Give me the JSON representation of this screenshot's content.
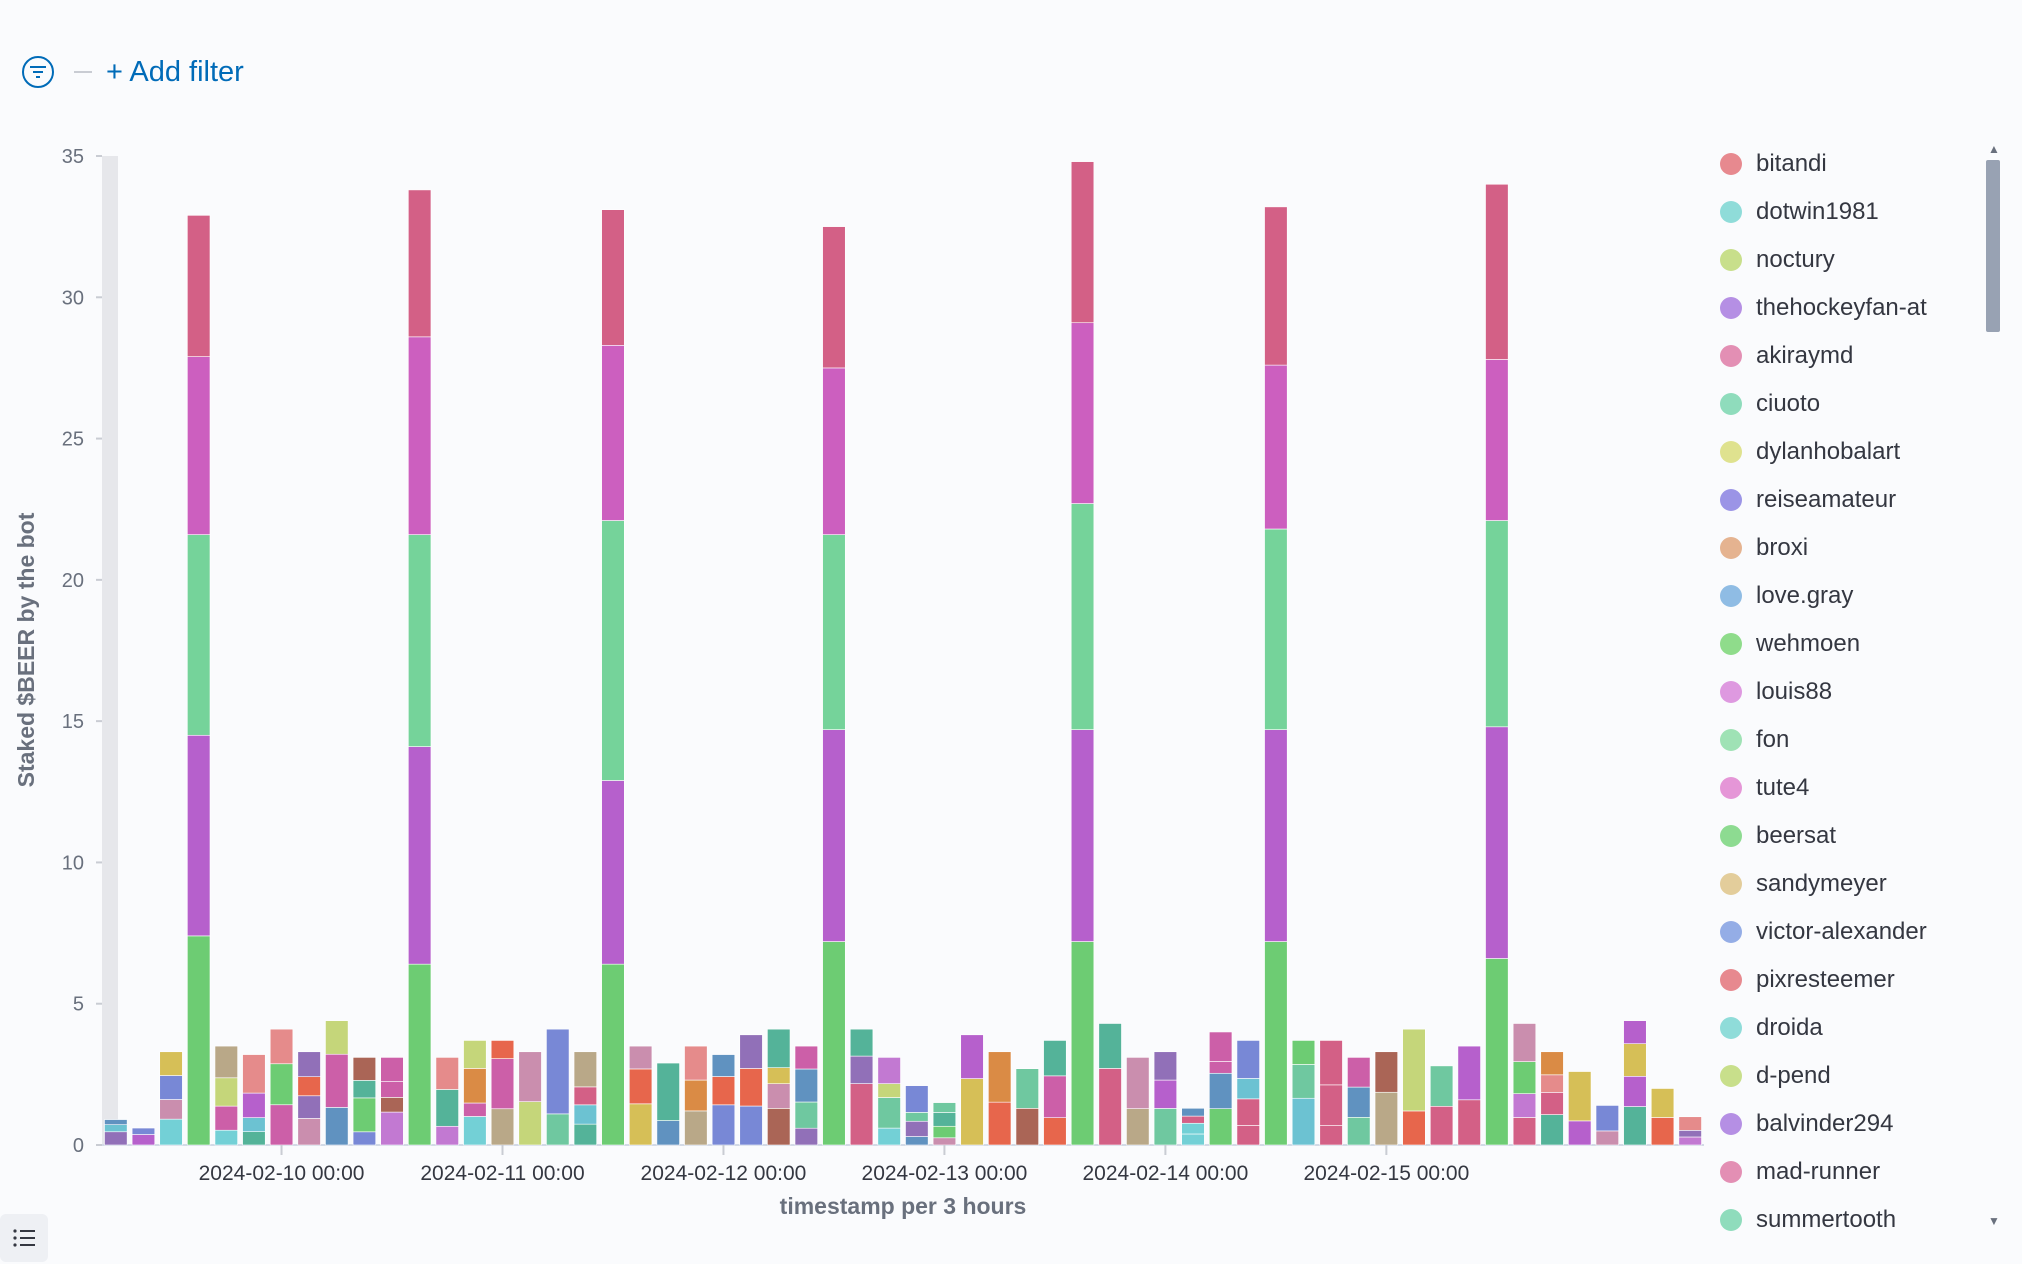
{
  "filter_bar": {
    "add_filter_label": "+ Add filter"
  },
  "chart_data": {
    "type": "bar",
    "stacked": true,
    "xlabel": "timestamp per 3 hours",
    "ylabel": "Staked $BEER by the bot",
    "ylim": [
      0,
      35
    ],
    "yticks": [
      0,
      5,
      10,
      15,
      20,
      25,
      30,
      35
    ],
    "xtick_labels": [
      "2024-02-10 00:00",
      "2024-02-11 00:00",
      "2024-02-12 00:00",
      "2024-02-13 00:00",
      "2024-02-14 00:00",
      "2024-02-15 00:00"
    ],
    "xtick_bar_positions": [
      6,
      14,
      22,
      30,
      38,
      46
    ],
    "legend_position": "right",
    "series_names": [
      "bitandi",
      "dotwin1981",
      "noctury",
      "thehockeyfan-at",
      "akiraymd",
      "ciuoto",
      "dylanhobalart",
      "reiseamateur",
      "broxi",
      "love.gray",
      "wehmoen",
      "louis88",
      "fon",
      "tute4",
      "beersat",
      "sandymeyer",
      "victor-alexander",
      "pixresteemer",
      "droida",
      "d-pend",
      "balvinder294",
      "mad-runner",
      "summertooth"
    ],
    "colors": [
      "#e7898f",
      "#8fdcd9",
      "#c8df8b",
      "#b58fe4",
      "#e38fb4",
      "#8fdcbc",
      "#dfe28f",
      "#9b94e6",
      "#e5b390",
      "#8fbce4",
      "#8fdc8b",
      "#de99e0",
      "#9fe2b5",
      "#e596d7",
      "#8ddb91",
      "#e3cd9b",
      "#94ade6",
      "#e7898f",
      "#8fdcd9",
      "#c8df8b",
      "#b58fe4",
      "#e38fb4",
      "#8fdcbc"
    ],
    "bar_colors": [
      "#d36086",
      "#54b399",
      "#d6bf57",
      "#6092c0",
      "#9170b8",
      "#ca8eae",
      "#6dcc73",
      "#b9a888",
      "#da8b45",
      "#aa6556",
      "#e7664c",
      "#73d0d6",
      "#b660cc",
      "#cc5fa8",
      "#c5d67a",
      "#6cc2d2",
      "#7888d6",
      "#e58b8b",
      "#6fc8a0",
      "#c279d2"
    ],
    "bar_totals": [
      0.9,
      0.6,
      3.3,
      32.9,
      3.5,
      3.2,
      4.1,
      3.3,
      4.4,
      3.1,
      3.1,
      33.8,
      3.1,
      3.7,
      3.7,
      3.3,
      4.1,
      3.3,
      33.1,
      3.5,
      2.9,
      3.5,
      3.2,
      3.9,
      4.1,
      3.5,
      32.5,
      4.1,
      3.1,
      2.1,
      1.5,
      3.9,
      3.3,
      2.7,
      3.7,
      34.8,
      4.3,
      3.1,
      3.3,
      1.3,
      4.0,
      3.7,
      33.2,
      3.7,
      3.7,
      3.1,
      3.3,
      4.1,
      2.8,
      3.5,
      34.0,
      4.3,
      3.3,
      2.6,
      1.4,
      4.4,
      2.0,
      1.0
    ],
    "tall_bar_segments": {
      "3": [
        7.4,
        7.1,
        7.1,
        6.3,
        5.0
      ],
      "11": [
        6.4,
        7.7,
        7.5,
        7.0,
        5.2
      ],
      "18": [
        6.4,
        6.5,
        9.2,
        6.2,
        4.8
      ],
      "26": [
        7.2,
        7.5,
        6.9,
        5.9,
        5.0
      ],
      "35": [
        7.2,
        7.5,
        8.0,
        6.4,
        5.7
      ],
      "42": [
        7.2,
        7.5,
        7.1,
        5.8,
        5.6
      ],
      "50": [
        6.6,
        8.2,
        7.3,
        5.7,
        6.2
      ]
    },
    "tall_bar_colors": [
      "#6dcc73",
      "#b660cc",
      "#75d39a",
      "#cc5fbf",
      "#d36086"
    ]
  }
}
